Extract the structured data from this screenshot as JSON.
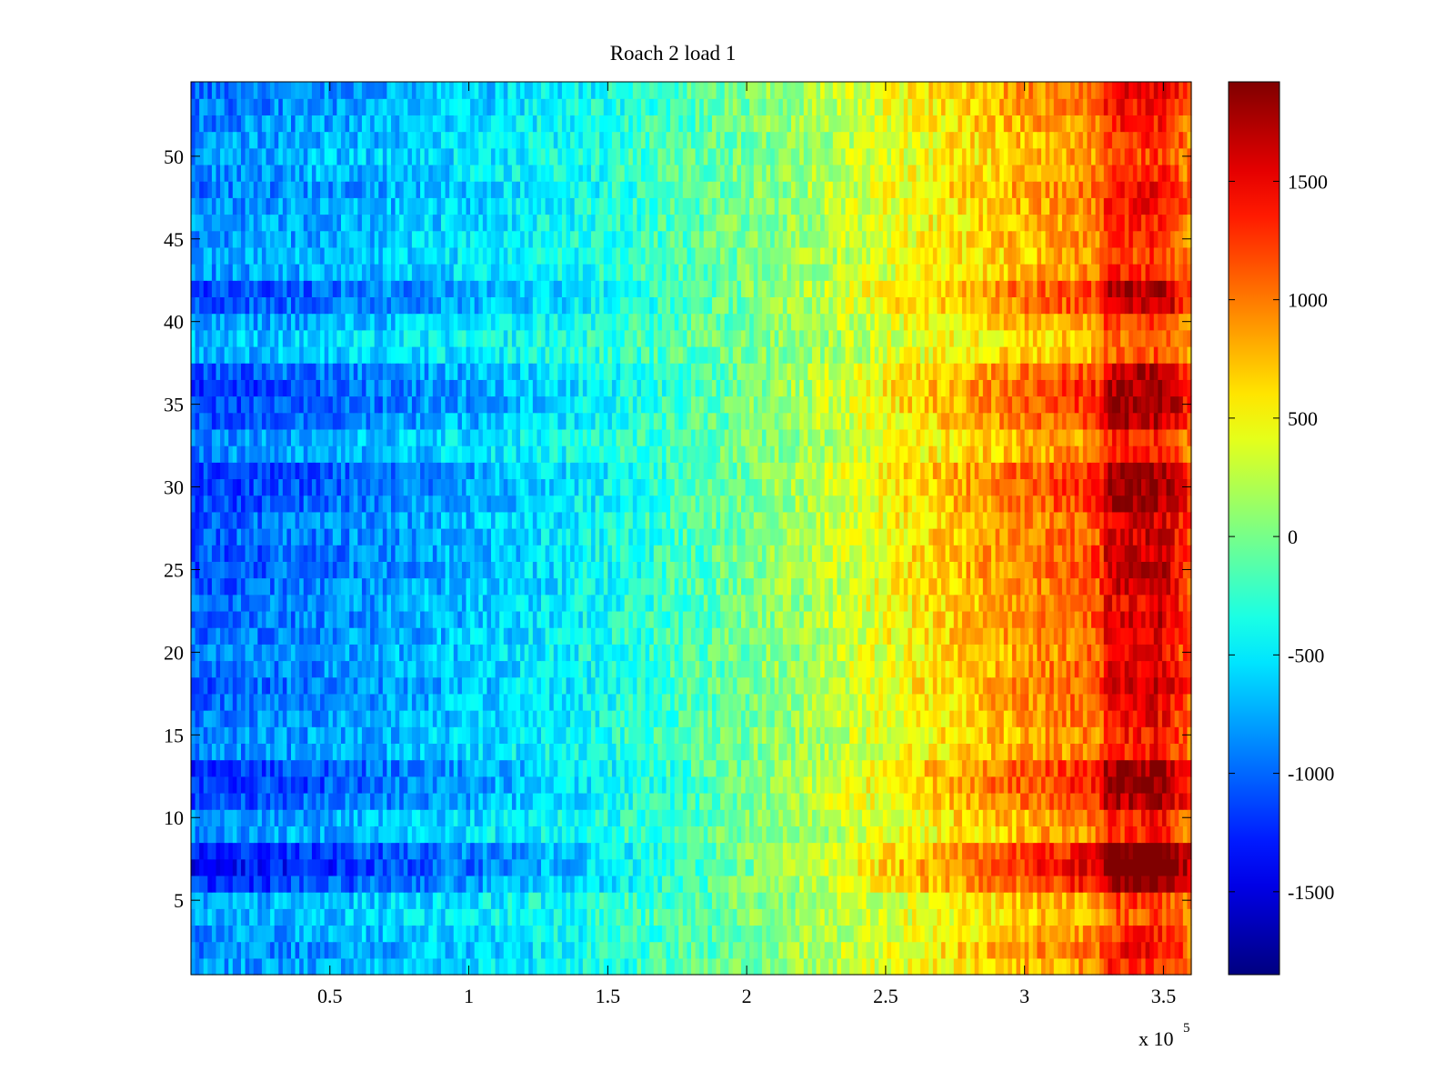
{
  "chart_data": {
    "type": "heatmap",
    "title": "Roach 2 load 1",
    "xlabel": "",
    "ylabel": "",
    "x_exponent_label": "x 10",
    "x_exponent_power": "5",
    "xlim": [
      0,
      3.6
    ],
    "ylim": [
      0.5,
      54.5
    ],
    "x_ticks": [
      0.5,
      1,
      1.5,
      2,
      2.5,
      3,
      3.5
    ],
    "x_tick_labels": [
      "0.5",
      "1",
      "1.5",
      "2",
      "2.5",
      "3",
      "3.5"
    ],
    "y_ticks": [
      5,
      10,
      15,
      20,
      25,
      30,
      35,
      40,
      45,
      50
    ],
    "y_tick_labels": [
      "5",
      "10",
      "15",
      "20",
      "25",
      "30",
      "35",
      "40",
      "45",
      "50"
    ],
    "rows": 54,
    "columns": 240,
    "x_range_units": "x 10^5",
    "colorbar": {
      "colormap": "jet",
      "clim": [
        -1850,
        1920
      ],
      "ticks": [
        -1500,
        -1000,
        -500,
        0,
        500,
        1000,
        1500
      ],
      "tick_labels": [
        "-1500",
        "-1000",
        "-500",
        "0",
        "500",
        "1000",
        "1500"
      ]
    },
    "value_model": {
      "base_profile_x": [
        0,
        0.5,
        1,
        1.5,
        1.9,
        2.2,
        2.5,
        3,
        3.27,
        3.3,
        3.5,
        3.6
      ],
      "base_profile_value": [
        -1000,
        -850,
        -650,
        -380,
        -80,
        150,
        450,
        900,
        1100,
        1500,
        1550,
        1100
      ],
      "row_amplitude": {
        "1": 0.85,
        "2": 0.95,
        "3": 0.85,
        "4": 0.75,
        "5": 0.8,
        "6": 1.25,
        "7": 1.45,
        "8": 1.35,
        "9": 0.85,
        "10": 0.9,
        "11": 1.15,
        "12": 1.25,
        "13": 1.2,
        "14": 0.9,
        "15": 0.9,
        "16": 0.95,
        "17": 1.0,
        "18": 1.05,
        "19": 1.0,
        "20": 0.95,
        "21": 1.0,
        "22": 1.05,
        "23": 1.0,
        "24": 1.05,
        "25": 1.1,
        "26": 1.1,
        "27": 1.05,
        "28": 1.05,
        "29": 1.15,
        "30": 1.2,
        "31": 1.2,
        "32": 0.9,
        "33": 0.85,
        "34": 1.1,
        "35": 1.2,
        "36": 1.2,
        "37": 1.1,
        "38": 0.75,
        "39": 0.7,
        "40": 0.85,
        "41": 1.1,
        "42": 1.15,
        "43": 0.85,
        "44": 0.8,
        "45": 0.85,
        "46": 0.85,
        "47": 0.9,
        "48": 0.95,
        "49": 0.85,
        "50": 0.8,
        "51": 0.85,
        "52": 0.9,
        "53": 0.95,
        "54": 1.0
      },
      "noise_amplitude": 260
    }
  }
}
